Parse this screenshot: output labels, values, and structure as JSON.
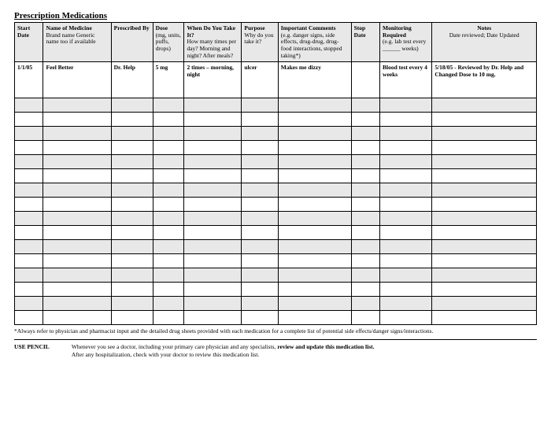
{
  "title": "Prescription Medications",
  "columns": [
    {
      "header": "Start Date",
      "sub": ""
    },
    {
      "header": "Name of  Medicine",
      "sub": "Brand name\nGeneric name too if available"
    },
    {
      "header": "Prescribed By",
      "sub": ""
    },
    {
      "header": "Dose",
      "sub": "(mg, units, puffs, drops)"
    },
    {
      "header": "When Do You Take It?",
      "sub": "How many times per day? Morning and night? After meals?"
    },
    {
      "header": "Purpose",
      "sub": "Why do you take it?"
    },
    {
      "header": "Important Comments",
      "sub": "(e.g. danger signs, side effects, drug-drug, drug-food interactions, stopped taking*)"
    },
    {
      "header": "Stop Date",
      "sub": ""
    },
    {
      "header": "Monitoring Required",
      "sub": "(e.g. lab test every ______ weeks)"
    },
    {
      "header": "Notes",
      "sub": "Date reviewed; Date Updated"
    }
  ],
  "row": {
    "start": "1/1/05",
    "name": "Feel Better",
    "prescribed": "Dr. Help",
    "dose": "5 mg",
    "when": "2 times – morning, night",
    "purpose": "ulcer",
    "important": "Makes me dizzy",
    "stop": "",
    "monitoring": "Blood test every 4 weeks",
    "notes": "5/18/05 - Reviewed by Dr. Help and Changed Dose to 10 mg."
  },
  "empty_row_count": 16,
  "footnote": "*Always refer to physician and pharmacist input and the detailed drug sheets provided with each medication for a complete list of potential side effects/danger signs/interactions.",
  "footer": {
    "label": "USE PENCIL",
    "line1a": "Whenever you see a doctor, including your primary care physician and any specialists, ",
    "line1b": "review and update this medication list.",
    "line2": "After any hospitalization, check with your doctor to review this medication list."
  },
  "colors": {
    "shade": "#e8e8e8",
    "border": "#000000",
    "bg": "#ffffff",
    "text": "#000000"
  }
}
